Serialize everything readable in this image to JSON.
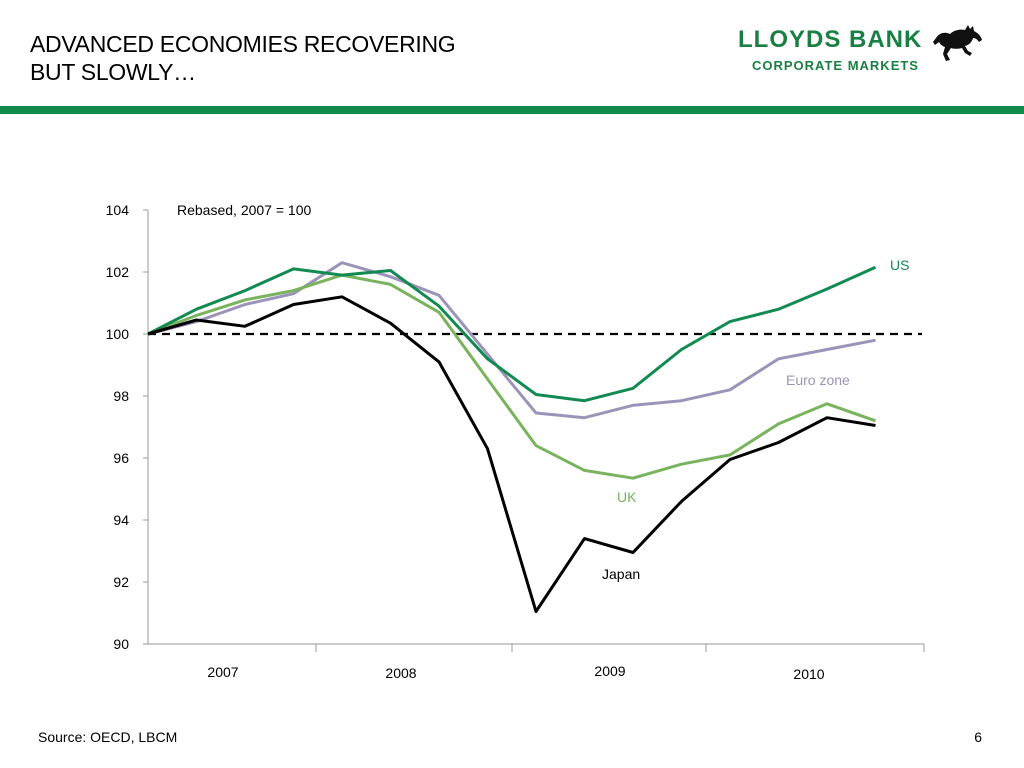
{
  "slide": {
    "title": "ADVANCED ECONOMIES RECOVERING\nBUT SLOWLY…",
    "source": "Source: OECD, LBCM",
    "page_number": "6"
  },
  "logo": {
    "name": "LLOYDS BANK",
    "subtitle": "CORPORATE MARKETS",
    "icon": "black-horse-icon",
    "color": "#1a7f43"
  },
  "colors": {
    "rule": "#118a4e"
  },
  "chart_data": {
    "type": "line",
    "annotation": "Rebased, 2007 = 100",
    "ylim": [
      90,
      104
    ],
    "yticks": [
      90,
      92,
      94,
      96,
      98,
      100,
      102,
      104
    ],
    "x": [
      "2007Q1",
      "2007Q2",
      "2007Q3",
      "2007Q4",
      "2008Q1",
      "2008Q2",
      "2008Q3",
      "2008Q4",
      "2009Q1",
      "2009Q2",
      "2009Q3",
      "2009Q4",
      "2010Q1",
      "2010Q2",
      "2010Q3",
      "2010Q4"
    ],
    "year_labels": [
      "2007",
      "2008",
      "2009",
      "2010"
    ],
    "reference_line": 100,
    "grid": false,
    "series": [
      {
        "name": "US",
        "color": "#128a52",
        "values": [
          100,
          100.8,
          101.4,
          102.1,
          101.9,
          102.05,
          100.9,
          99.2,
          98.05,
          97.85,
          98.25,
          99.5,
          100.4,
          100.8,
          101.45,
          102.15
        ]
      },
      {
        "name": "Euro zone",
        "color": "#9c93b8",
        "values": [
          100,
          100.4,
          100.95,
          101.3,
          102.3,
          101.85,
          101.25,
          99.35,
          97.45,
          97.3,
          97.7,
          97.85,
          98.2,
          99.2,
          99.5,
          99.8
        ]
      },
      {
        "name": "UK",
        "color": "#79b35e",
        "values": [
          100,
          100.6,
          101.1,
          101.4,
          101.9,
          101.6,
          100.7,
          98.55,
          96.4,
          95.6,
          95.35,
          95.8,
          96.1,
          97.1,
          97.75,
          97.2
        ]
      },
      {
        "name": "Japan",
        "color": "#000000",
        "values": [
          100,
          100.45,
          100.25,
          100.95,
          101.2,
          100.35,
          99.1,
          96.3,
          91.05,
          93.4,
          92.95,
          94.6,
          95.95,
          96.5,
          97.3,
          97.05
        ]
      }
    ]
  }
}
